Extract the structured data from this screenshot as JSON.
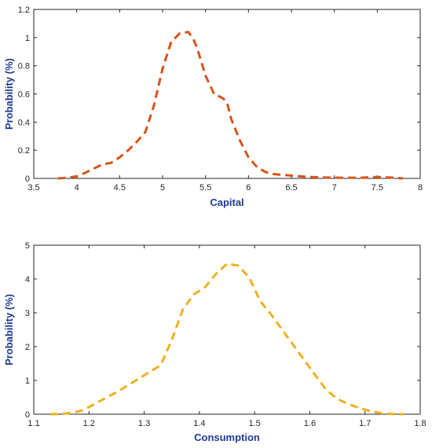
{
  "chart_data": [
    {
      "type": "line",
      "xlabel": "Capital",
      "ylabel": "Probability (%)",
      "xlim": [
        3.5,
        8
      ],
      "ylim": [
        0,
        1.2
      ],
      "xticks": [
        "3.5",
        "4",
        "4.5",
        "5",
        "5.5",
        "6",
        "6.5",
        "7",
        "7.5",
        "8"
      ],
      "yticks": [
        "0",
        "0.2",
        "0.4",
        "0.6",
        "0.8",
        "1",
        "1.2"
      ],
      "grid": false,
      "series": [
        {
          "color": "#d95319",
          "line_style": "dashed",
          "x": [
            3.78,
            3.9,
            4.0,
            4.1,
            4.2,
            4.3,
            4.4,
            4.5,
            4.6,
            4.7,
            4.8,
            4.9,
            5.0,
            5.1,
            5.2,
            5.3,
            5.35,
            5.4,
            5.5,
            5.6,
            5.7,
            5.75,
            5.8,
            5.9,
            6.0,
            6.1,
            6.2,
            6.3,
            6.5,
            6.7,
            7.0,
            7.3,
            7.5,
            7.7,
            7.8
          ],
          "y": [
            0.0,
            0.005,
            0.015,
            0.04,
            0.07,
            0.1,
            0.11,
            0.15,
            0.2,
            0.26,
            0.33,
            0.52,
            0.78,
            0.97,
            1.03,
            1.04,
            1.0,
            0.93,
            0.73,
            0.6,
            0.57,
            0.54,
            0.42,
            0.27,
            0.15,
            0.08,
            0.045,
            0.03,
            0.02,
            0.01,
            0.005,
            0.005,
            0.01,
            0.005,
            0.0
          ]
        }
      ]
    },
    {
      "type": "line",
      "xlabel": "Consumption",
      "ylabel": "Probability (%)",
      "xlim": [
        1.1,
        1.8
      ],
      "ylim": [
        0,
        5
      ],
      "xticks": [
        "1.1",
        "1.2",
        "1.3",
        "1.4",
        "1.5",
        "1.6",
        "1.7",
        "1.8"
      ],
      "yticks": [
        "0",
        "1",
        "2",
        "3",
        "4",
        "5"
      ],
      "grid": false,
      "series": [
        {
          "color": "#edb120",
          "line_style": "dashed",
          "x": [
            1.13,
            1.15,
            1.17,
            1.19,
            1.21,
            1.23,
            1.25,
            1.27,
            1.29,
            1.31,
            1.33,
            1.35,
            1.37,
            1.39,
            1.41,
            1.43,
            1.45,
            1.47,
            1.49,
            1.51,
            1.53,
            1.55,
            1.57,
            1.59,
            1.61,
            1.63,
            1.65,
            1.67,
            1.69,
            1.71,
            1.73,
            1.75,
            1.77
          ],
          "y": [
            0.0,
            0.01,
            0.04,
            0.12,
            0.3,
            0.48,
            0.65,
            0.85,
            1.05,
            1.25,
            1.45,
            2.2,
            3.1,
            3.55,
            3.75,
            4.15,
            4.45,
            4.4,
            4.05,
            3.35,
            2.95,
            2.5,
            2.05,
            1.6,
            1.15,
            0.72,
            0.45,
            0.3,
            0.18,
            0.09,
            0.03,
            0.005,
            0.0
          ]
        }
      ]
    }
  ]
}
